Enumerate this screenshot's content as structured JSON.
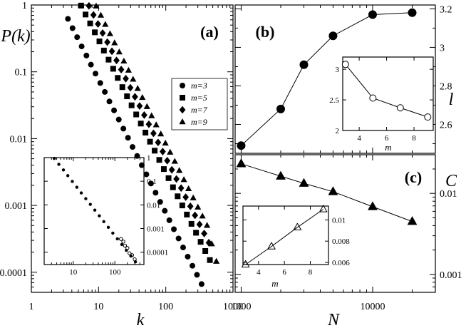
{
  "chart_data": [
    {
      "panel": "(a)",
      "type": "scatter",
      "xlabel": "k",
      "ylabel": "P(k)",
      "xscale": "log",
      "yscale": "log",
      "xlim": [
        1,
        1000
      ],
      "ylim": [
        5e-05,
        1
      ],
      "xticks": [
        "1",
        "10",
        "100",
        "1000"
      ],
      "yticks": [
        "1",
        "0.1",
        "0.01",
        "0.001",
        "0.0001"
      ],
      "legend_position": "right",
      "series": [
        {
          "name": "m=3",
          "marker": "circle",
          "x": [
            3.5,
            4.1,
            4.8,
            5.6,
            6.6,
            7.7,
            9,
            10.6,
            12.4,
            14.5,
            17,
            20,
            23.4,
            27.4,
            32,
            37.5,
            43.9,
            51.4,
            60.2,
            70.5,
            82.5,
            96.6,
            113,
            132,
            155,
            181,
            212,
            249,
            291,
            341
          ],
          "y": [
            0.62,
            0.45,
            0.33,
            0.24,
            0.175,
            0.128,
            0.094,
            0.068,
            0.05,
            0.036,
            0.0265,
            0.0193,
            0.0141,
            0.0103,
            0.0075,
            0.0055,
            0.004,
            0.00292,
            0.00213,
            0.00155,
            0.00113,
            0.00083,
            0.0006,
            0.00044,
            0.00032,
            0.000235,
            0.000171,
            0.000125,
            9.15e-05,
            6.65e-05
          ]
        },
        {
          "name": "m=5",
          "marker": "square",
          "x": [
            5.5,
            6.4,
            7.5,
            8.8,
            10.3,
            12,
            14.1,
            16.5,
            19.3,
            22.6,
            26.5,
            31,
            36.3,
            42.5,
            49.8,
            58.3,
            68.3,
            80,
            93.6,
            110,
            128,
            150,
            176,
            206,
            241,
            282,
            330,
            387,
            453
          ],
          "y": [
            0.98,
            0.72,
            0.53,
            0.39,
            0.285,
            0.208,
            0.152,
            0.111,
            0.081,
            0.059,
            0.043,
            0.0315,
            0.023,
            0.0168,
            0.0123,
            0.009,
            0.0066,
            0.0048,
            0.0035,
            0.00256,
            0.00187,
            0.00137,
            0.001,
            0.00073,
            0.00053,
            0.00039,
            0.000285,
            0.000208,
            0.000152
          ]
        },
        {
          "name": "m=7",
          "marker": "diamond",
          "x": [
            7.2,
            8.4,
            9.8,
            11.5,
            13.5,
            15.8,
            18.5,
            21.7,
            25.4,
            29.7,
            34.8,
            40.8,
            47.8,
            56,
            65.6,
            76.8,
            90,
            105,
            123,
            144,
            169,
            198,
            232,
            272,
            318,
            373,
            437
          ],
          "y": [
            0.97,
            0.71,
            0.52,
            0.38,
            0.278,
            0.203,
            0.148,
            0.108,
            0.079,
            0.0578,
            0.0422,
            0.0308,
            0.0225,
            0.0164,
            0.012,
            0.00877,
            0.0064,
            0.00467,
            0.00341,
            0.00249,
            0.00182,
            0.00133,
            0.00097,
            0.00071,
            0.00052,
            0.00038,
            0.000277
          ]
        },
        {
          "name": "m=9",
          "marker": "triangle",
          "x": [
            9.2,
            10.8,
            12.6,
            14.8,
            17.3,
            20.3,
            23.8,
            27.9,
            32.6,
            38.2,
            44.8,
            52.5,
            61.5,
            72,
            84.3,
            98.8,
            116,
            136,
            159,
            186,
            218,
            256,
            300,
            351,
            411,
            482,
            565
          ],
          "y": [
            0.96,
            0.7,
            0.51,
            0.37,
            0.27,
            0.197,
            0.144,
            0.105,
            0.077,
            0.056,
            0.041,
            0.03,
            0.0219,
            0.016,
            0.0117,
            0.00853,
            0.00623,
            0.00455,
            0.00332,
            0.00242,
            0.00177,
            0.00129,
            0.00094,
            0.00069,
            0.0005,
            0.000265,
            0.000145
          ]
        }
      ],
      "inset": {
        "xscale": "log",
        "yscale": "log",
        "xlim": [
          2,
          500
        ],
        "ylim": [
          3e-05,
          1
        ],
        "xticks": [
          "10",
          "100"
        ],
        "yticks": [
          "1",
          "0.1",
          "0.01",
          "0.001",
          "0.0001"
        ],
        "x": [
          3.5,
          4.5,
          5.8,
          7.4,
          9.5,
          12.2,
          15.6,
          20,
          25.7,
          33,
          42.3,
          54.3,
          69.7,
          89.4,
          115,
          147,
          189,
          243,
          312
        ],
        "y": [
          0.92,
          0.52,
          0.3,
          0.172,
          0.098,
          0.056,
          0.032,
          0.0183,
          0.0105,
          0.006,
          0.00343,
          0.00196,
          0.00112,
          0.00064,
          0.000366,
          0.00021,
          0.00012,
          6.85e-05,
          3.92e-05
        ]
      }
    },
    {
      "panel": "(b)",
      "type": "line",
      "xlabel": "N",
      "ylabel": "l",
      "xscale": "log",
      "xlim": [
        900,
        30000
      ],
      "ylim": [
        2.45,
        3.22
      ],
      "yticks": [
        "2.6",
        "2.8",
        "3",
        "3.2"
      ],
      "x": [
        1000,
        2000,
        3000,
        5000,
        10000,
        20000
      ],
      "y": [
        2.49,
        2.68,
        2.91,
        3.06,
        3.17,
        3.18
      ],
      "inset": {
        "xlabel": "m",
        "xlim": [
          2.8,
          9.4
        ],
        "ylim": [
          2,
          3.2
        ],
        "xticks": [
          "4",
          "6",
          "8"
        ],
        "yticks": [
          "2",
          "2.5",
          "3"
        ],
        "x": [
          3,
          5,
          7,
          9
        ],
        "y": [
          3.08,
          2.53,
          2.37,
          2.22
        ]
      }
    },
    {
      "panel": "(c)",
      "type": "line",
      "xlabel": "N",
      "ylabel": "C",
      "xscale": "log",
      "yscale": "log",
      "xlim": [
        900,
        30000
      ],
      "ylim": [
        0.0006,
        0.03
      ],
      "xticks": [
        "1000",
        "10000"
      ],
      "yticks": [
        "0.001",
        "0.01"
      ],
      "x": [
        1000,
        2000,
        3000,
        5000,
        10000,
        20000
      ],
      "y": [
        0.0232,
        0.0163,
        0.0133,
        0.0105,
        0.00685,
        0.0045
      ],
      "inset": {
        "xlabel": "m",
        "xlim": [
          2.8,
          9.4
        ],
        "ylim": [
          0.0058,
          0.0113
        ],
        "xticks": [
          "4",
          "6",
          "8"
        ],
        "yticks": [
          "0.006",
          "0.008",
          "0.01"
        ],
        "x": [
          3,
          5,
          7,
          9
        ],
        "y": [
          0.0058,
          0.0075,
          0.0093,
          0.011
        ]
      }
    }
  ]
}
